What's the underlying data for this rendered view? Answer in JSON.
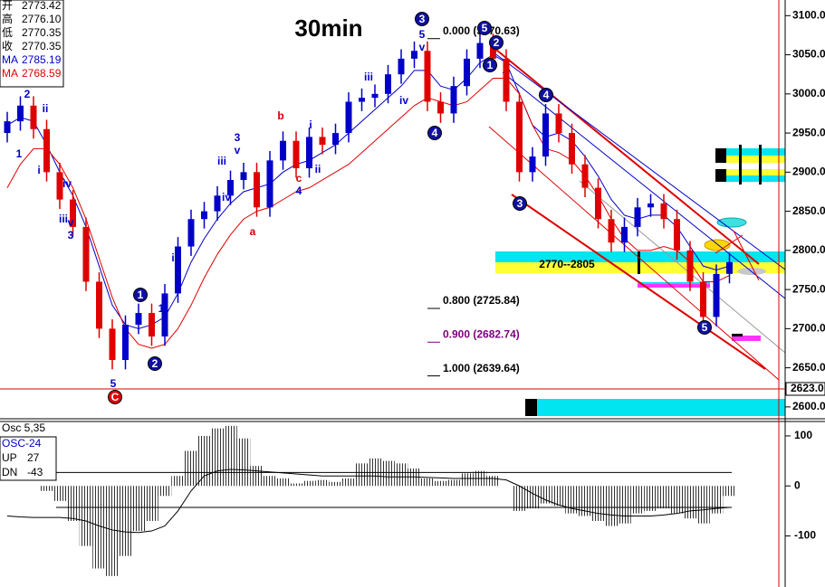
{
  "chart_data": [
    {
      "type": "candlestick",
      "title": "30min",
      "legend": [
        {
          "label": "开",
          "value": "2773.42",
          "color": "#000000"
        },
        {
          "label": "高",
          "value": "2776.10",
          "color": "#000000"
        },
        {
          "label": "低",
          "value": "2770.35",
          "color": "#000000"
        },
        {
          "label": "收",
          "value": "2770.35",
          "color": "#000000"
        },
        {
          "label": "MA",
          "value": "2785.19",
          "color": "#0000c8"
        },
        {
          "label": "MA",
          "value": "2768.59",
          "color": "#e00000"
        }
      ],
      "ylim": [
        2586,
        3120
      ],
      "yticks": [
        {
          "value": 3100,
          "label": "3100.0"
        },
        {
          "value": 3050,
          "label": "3050.0"
        },
        {
          "value": 3000,
          "label": "3000.0"
        },
        {
          "value": 2950,
          "label": "2950.0"
        },
        {
          "value": 2900,
          "label": "2900.0"
        },
        {
          "value": 2850,
          "label": "2850.0"
        },
        {
          "value": 2800,
          "label": "2800.0"
        },
        {
          "value": 2750,
          "label": "2750.0"
        },
        {
          "value": 2700,
          "label": "2700.0"
        },
        {
          "value": 2650,
          "label": "2650.0"
        },
        {
          "value": 2600,
          "label": "2600.0"
        }
      ],
      "cursor": {
        "value": 2623,
        "label": "2623.0"
      },
      "colors": {
        "up": "#0000c8",
        "down": "#e00000"
      },
      "open": [
        2950,
        2965,
        2985,
        2955,
        2900,
        2865,
        2830,
        2760,
        2700,
        2660,
        2705,
        2720,
        2690,
        2745,
        2805,
        2840,
        2850,
        2870,
        2890,
        2900,
        2855,
        2915,
        2940,
        2905,
        2945,
        2935,
        2950,
        2990,
        2995,
        3000,
        3025,
        3045,
        3055,
        2990,
        2975,
        3010,
        3045,
        3065,
        3045,
        2990,
        2900,
        2920,
        2975,
        2950,
        2910,
        2880,
        2840,
        2810,
        2830,
        2855,
        2860,
        2840,
        2800,
        2760,
        2715,
        2770
      ],
      "high": [
        2977,
        2997,
        2997,
        2967,
        2912,
        2877,
        2842,
        2772,
        2712,
        2717,
        2732,
        2732,
        2757,
        2817,
        2852,
        2862,
        2882,
        2902,
        2912,
        2912,
        2927,
        2952,
        2952,
        2957,
        2957,
        2962,
        3002,
        3007,
        3012,
        3037,
        3057,
        3067,
        3067,
        3002,
        3022,
        3057,
        3077,
        3077,
        3057,
        3002,
        2932,
        2987,
        2987,
        2962,
        2922,
        2892,
        2852,
        2842,
        2867,
        2872,
        2872,
        2852,
        2812,
        2772,
        2782,
        2797
      ],
      "low": [
        2938,
        2953,
        2943,
        2888,
        2853,
        2818,
        2748,
        2688,
        2648,
        2648,
        2693,
        2678,
        2678,
        2733,
        2793,
        2828,
        2838,
        2858,
        2878,
        2843,
        2843,
        2903,
        2893,
        2893,
        2923,
        2923,
        2938,
        2978,
        2983,
        2988,
        3013,
        3033,
        2978,
        2963,
        2963,
        2998,
        3033,
        3033,
        2978,
        2888,
        2888,
        2908,
        2938,
        2898,
        2868,
        2828,
        2798,
        2798,
        2818,
        2843,
        2828,
        2788,
        2748,
        2703,
        2703,
        2758
      ],
      "close": [
        2965,
        2985,
        2955,
        2900,
        2865,
        2830,
        2760,
        2700,
        2660,
        2705,
        2720,
        2690,
        2745,
        2805,
        2840,
        2850,
        2870,
        2890,
        2900,
        2855,
        2915,
        2940,
        2905,
        2945,
        2935,
        2950,
        2990,
        2995,
        3000,
        3025,
        3045,
        3055,
        2990,
        2975,
        3010,
        3045,
        3065,
        3045,
        2990,
        2900,
        2920,
        2975,
        2950,
        2910,
        2880,
        2840,
        2810,
        2830,
        2855,
        2860,
        2840,
        2800,
        2760,
        2715,
        2770,
        2785
      ],
      "series": [
        {
          "name": "MA",
          "color": "#0000c8",
          "values": [
            2960,
            2970,
            2965,
            2935,
            2900,
            2870,
            2830,
            2780,
            2730,
            2705,
            2700,
            2705,
            2715,
            2745,
            2785,
            2815,
            2840,
            2860,
            2875,
            2880,
            2885,
            2900,
            2910,
            2915,
            2925,
            2935,
            2950,
            2965,
            2980,
            2995,
            3010,
            3030,
            3030,
            3010,
            3005,
            3020,
            3040,
            3050,
            3040,
            3000,
            2960,
            2945,
            2950,
            2940,
            2920,
            2895,
            2865,
            2845,
            2840,
            2845,
            2845,
            2830,
            2805,
            2780,
            2775,
            2780
          ]
        },
        {
          "name": "MA",
          "color": "#e00000",
          "values": [
            2880,
            2910,
            2930,
            2930,
            2910,
            2880,
            2840,
            2790,
            2740,
            2700,
            2680,
            2675,
            2680,
            2700,
            2730,
            2765,
            2795,
            2820,
            2840,
            2850,
            2855,
            2865,
            2875,
            2880,
            2890,
            2900,
            2910,
            2925,
            2940,
            2955,
            2970,
            2985,
            2995,
            2990,
            2985,
            2990,
            3005,
            3020,
            3020,
            3000,
            2960,
            2930,
            2925,
            2915,
            2895,
            2870,
            2840,
            2815,
            2800,
            2800,
            2805,
            2800,
            2785,
            2760,
            2760,
            2768
          ]
        }
      ],
      "fib_levels": [
        {
          "value": 3070.63,
          "label": "0.000 (3070.63)",
          "color": "#000000"
        },
        {
          "value": 2725.84,
          "label": "0.800 (2725.84)",
          "color": "#000000"
        },
        {
          "value": 2682.74,
          "label": "0.900 (2682.74)",
          "color": "#800080"
        },
        {
          "value": 2639.64,
          "label": "1.000 (2639.64)",
          "color": "#000000"
        }
      ],
      "zone_label": "2770--2805",
      "wave_labels": [
        "2",
        "1",
        "ii",
        "i",
        "iv",
        "iii",
        "v",
        "3",
        "5",
        "C",
        "1",
        "2",
        "1",
        "2",
        "i",
        "ii",
        "iii",
        "3",
        "v",
        "iv",
        "a",
        "b",
        "c",
        "4",
        "i",
        "ii",
        "iii",
        "iv",
        "5",
        "v",
        "3",
        "4",
        "5",
        "2",
        "1",
        "3",
        "4",
        "5"
      ]
    },
    {
      "type": "bar",
      "title": "Osc 5,35",
      "ylim": [
        -202,
        127
      ],
      "yticks": [
        100,
        0,
        -100
      ],
      "color": "#333333",
      "values": [
        null,
        null,
        null,
        -10,
        -30,
        -70,
        -120,
        -165,
        -180,
        -140,
        -90,
        -70,
        -20,
        20,
        70,
        100,
        115,
        120,
        95,
        40,
        20,
        15,
        5,
        10,
        12,
        8,
        15,
        45,
        55,
        50,
        45,
        35,
        15,
        10,
        12,
        25,
        30,
        20,
        0,
        -50,
        -45,
        -35,
        -40,
        -55,
        -60,
        -70,
        -80,
        -75,
        -55,
        -50,
        -45,
        -55,
        -65,
        -75,
        -55,
        -20
      ],
      "series": [
        {
          "name": "OSC-24",
          "color": "#000000",
          "values": [
            -60,
            -62,
            -63,
            -63,
            -63,
            -65,
            -70,
            -80,
            -88,
            -92,
            -93,
            -90,
            -80,
            -50,
            -10,
            20,
            30,
            33,
            32,
            30,
            28,
            26,
            24,
            22,
            20,
            20,
            20,
            20,
            20,
            18,
            18,
            18,
            17,
            16,
            15,
            15,
            15,
            15,
            12,
            0,
            -15,
            -28,
            -38,
            -45,
            -50,
            -55,
            -58,
            -60,
            -60,
            -60,
            -58,
            -55,
            -50,
            -48,
            -45,
            -43
          ]
        }
      ],
      "up": {
        "label": "UP",
        "value": 27
      },
      "dn": {
        "label": "DN",
        "value": -43
      }
    }
  ]
}
